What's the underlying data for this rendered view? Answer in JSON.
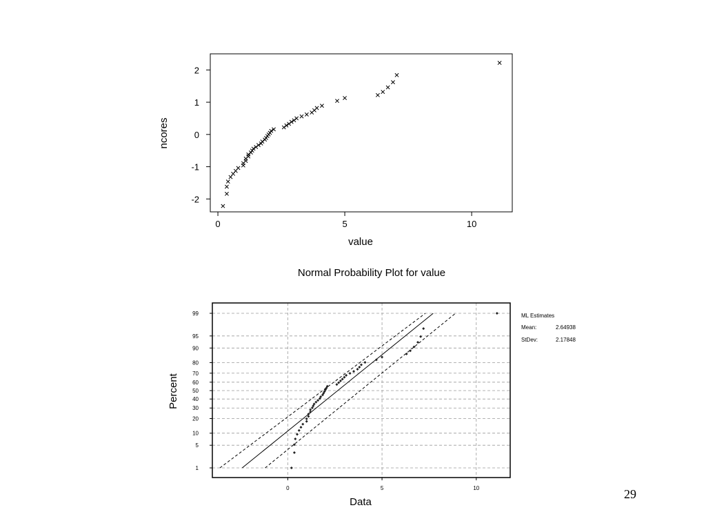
{
  "slide": {
    "page_number": "29"
  },
  "chart_data": [
    {
      "type": "scatter",
      "title": "",
      "xlabel": "value",
      "ylabel": "ncores",
      "xlim": [
        -0.3,
        11.6
      ],
      "ylim": [
        -2.4,
        2.5
      ],
      "xticks": [
        0,
        5,
        10
      ],
      "yticks": [
        -2,
        -1,
        0,
        1,
        2
      ],
      "marker": "x",
      "grid": false,
      "points": [
        [
          0.2,
          -2.22
        ],
        [
          0.35,
          -1.84
        ],
        [
          0.35,
          -1.62
        ],
        [
          0.4,
          -1.46
        ],
        [
          0.5,
          -1.32
        ],
        [
          0.6,
          -1.22
        ],
        [
          0.7,
          -1.13
        ],
        [
          0.8,
          -1.04
        ],
        [
          1.0,
          -0.96
        ],
        [
          1.0,
          -0.89
        ],
        [
          1.1,
          -0.82
        ],
        [
          1.1,
          -0.75
        ],
        [
          1.2,
          -0.68
        ],
        [
          1.2,
          -0.62
        ],
        [
          1.3,
          -0.56
        ],
        [
          1.35,
          -0.5
        ],
        [
          1.4,
          -0.44
        ],
        [
          1.5,
          -0.39
        ],
        [
          1.6,
          -0.33
        ],
        [
          1.7,
          -0.28
        ],
        [
          1.75,
          -0.22
        ],
        [
          1.85,
          -0.16
        ],
        [
          1.9,
          -0.11
        ],
        [
          1.95,
          -0.05
        ],
        [
          2.0,
          0.0
        ],
        [
          2.05,
          0.05
        ],
        [
          2.1,
          0.11
        ],
        [
          2.2,
          0.16
        ],
        [
          2.6,
          0.22
        ],
        [
          2.7,
          0.28
        ],
        [
          2.8,
          0.33
        ],
        [
          2.9,
          0.39
        ],
        [
          3.0,
          0.44
        ],
        [
          3.1,
          0.5
        ],
        [
          3.3,
          0.56
        ],
        [
          3.5,
          0.62
        ],
        [
          3.7,
          0.68
        ],
        [
          3.8,
          0.75
        ],
        [
          3.9,
          0.82
        ],
        [
          4.1,
          0.89
        ],
        [
          4.7,
          1.04
        ],
        [
          5.0,
          1.13
        ],
        [
          6.3,
          1.22
        ],
        [
          6.5,
          1.32
        ],
        [
          6.7,
          1.46
        ],
        [
          6.9,
          1.62
        ],
        [
          7.05,
          1.84
        ],
        [
          11.1,
          2.22
        ]
      ]
    },
    {
      "type": "scatter",
      "title": "Normal Probability Plot for value",
      "xlabel": "Data",
      "ylabel": "Percent",
      "xlim": [
        -4,
        11.8
      ],
      "xticks": [
        0,
        5,
        10
      ],
      "yticks": [
        1,
        5,
        10,
        20,
        30,
        40,
        50,
        60,
        70,
        80,
        90,
        95,
        99
      ],
      "grid": true,
      "marker": "dot",
      "annotations": {
        "title": "ML Estimates",
        "rows": [
          {
            "label": "Mean:",
            "value": "2.64938"
          },
          {
            "label": "StDev:",
            "value": "2.17848"
          }
        ]
      },
      "fit": {
        "mean": 2.64938,
        "sd": 2.17848,
        "percent_range": [
          1,
          99
        ]
      },
      "confidence_band_data_x": {
        "lower": [
          [
            -3.6,
            1
          ],
          [
            7.3,
            99
          ]
        ],
        "upper": [
          [
            -1.2,
            1
          ],
          [
            8.9,
            99
          ]
        ]
      },
      "points": [
        [
          0.2,
          1
        ],
        [
          0.35,
          3.1
        ],
        [
          0.35,
          5.2
        ],
        [
          0.4,
          7.3
        ],
        [
          0.5,
          9.4
        ],
        [
          0.6,
          11.5
        ],
        [
          0.7,
          13.5
        ],
        [
          0.8,
          15.6
        ],
        [
          1.0,
          17.7
        ],
        [
          1.0,
          19.8
        ],
        [
          1.1,
          21.9
        ],
        [
          1.1,
          24.0
        ],
        [
          1.2,
          26.0
        ],
        [
          1.2,
          28.1
        ],
        [
          1.3,
          30.2
        ],
        [
          1.35,
          32.3
        ],
        [
          1.4,
          34.4
        ],
        [
          1.5,
          36.5
        ],
        [
          1.6,
          38.5
        ],
        [
          1.7,
          40.6
        ],
        [
          1.75,
          42.7
        ],
        [
          1.85,
          44.8
        ],
        [
          1.9,
          46.9
        ],
        [
          1.95,
          49.0
        ],
        [
          2.0,
          51.0
        ],
        [
          2.05,
          53.1
        ],
        [
          2.1,
          55.2
        ],
        [
          2.6,
          57.3
        ],
        [
          2.7,
          59.4
        ],
        [
          2.8,
          61.5
        ],
        [
          2.9,
          63.5
        ],
        [
          3.0,
          65.6
        ],
        [
          3.1,
          67.7
        ],
        [
          3.3,
          69.8
        ],
        [
          3.5,
          71.9
        ],
        [
          3.7,
          74.0
        ],
        [
          3.8,
          76.0
        ],
        [
          3.9,
          78.1
        ],
        [
          4.1,
          80.2
        ],
        [
          4.7,
          82.3
        ],
        [
          5.0,
          84.4
        ],
        [
          6.3,
          86.5
        ],
        [
          6.5,
          88.5
        ],
        [
          6.7,
          90.6
        ],
        [
          6.9,
          92.7
        ],
        [
          7.05,
          94.8
        ],
        [
          7.2,
          96.9
        ],
        [
          11.1,
          99
        ]
      ]
    }
  ]
}
